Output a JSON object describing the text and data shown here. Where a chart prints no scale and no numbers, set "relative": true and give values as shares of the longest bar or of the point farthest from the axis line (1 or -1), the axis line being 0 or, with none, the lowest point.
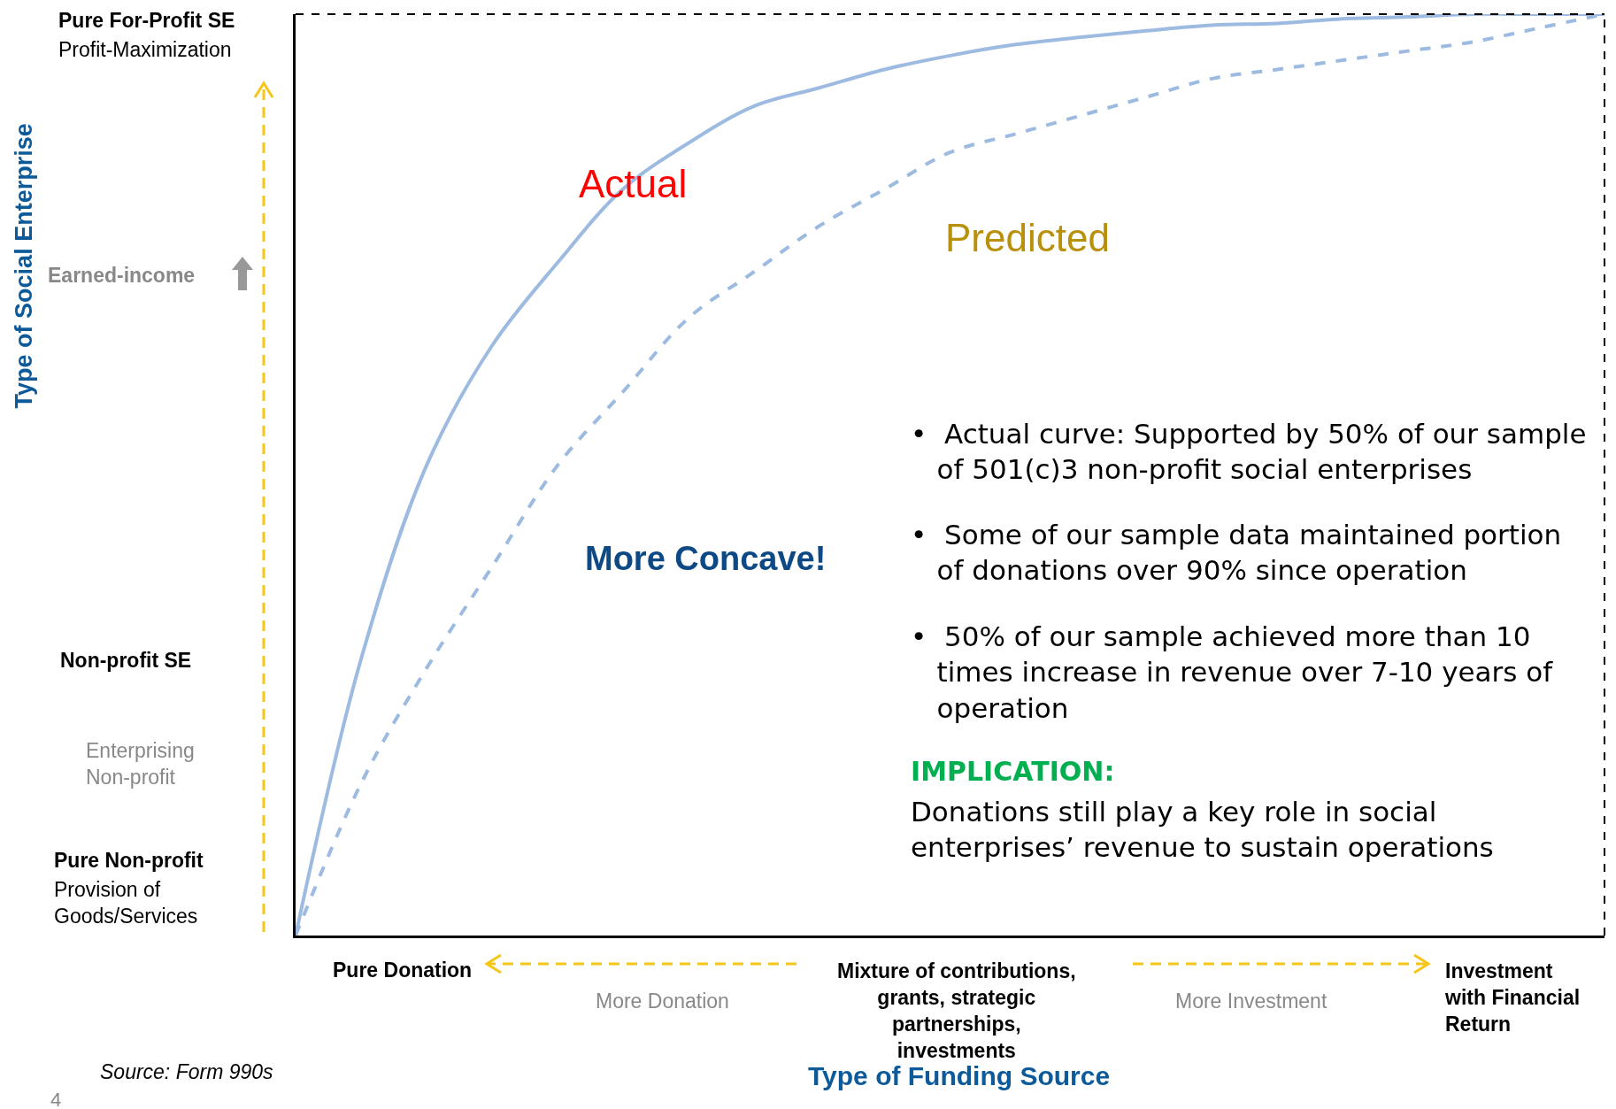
{
  "chart_data": {
    "type": "line",
    "relative": true,
    "xlabel": "Type of Funding Source",
    "categories": [
      null,
      null,
      null,
      null,
      null,
      null,
      null,
      null,
      null,
      null,
      null,
      null,
      null,
      null,
      null,
      null,
      null,
      null,
      null,
      null,
      null
    ],
    "series": [
      {
        "name": "Actual",
        "color": "#9dbbe0",
        "line_style": "solid",
        "values": [
          0,
          0.3,
          0.51,
          0.64,
          0.73,
          0.81,
          0.86,
          0.9,
          0.92,
          0.94,
          0.955,
          0.967,
          0.975,
          0.982,
          0.988,
          0.99,
          0.995,
          0.997,
          1,
          1,
          1
        ]
      },
      {
        "name": "Predicted",
        "color": "#9dbbe0",
        "line_style": "dashed",
        "values": [
          0,
          0.165,
          0.29,
          0.4,
          0.51,
          0.59,
          0.67,
          0.72,
          0.77,
          0.81,
          0.85,
          0.87,
          0.89,
          0.91,
          0.93,
          0.94,
          0.95,
          0.96,
          0.97,
          0.985,
          1
        ]
      }
    ],
    "marker": "none",
    "legend": false,
    "annotations": [
      "Pure For-Profit SE",
      "Profit-Maximization",
      "Earned-income",
      "Non-profit SE",
      "Enterprising\nNon-profit",
      "Pure Non-profit",
      "Provision of\nGoods/Services",
      "Pure Donation",
      "More Donation",
      "Mixture of contributions,\ngrants, strategic\npartnerships,\ninvestments",
      "More Investment",
      "Investment\nwith Financial\nReturn",
      "More Concave!",
      "•  Actual curve: Supported by 50% of our sample\n   of 501(c)3 non-profit social enterprises",
      "•  Some of our sample data maintained portion\n   of donations over 90% since operation",
      "•  50% of our sample achieved more than 10\n   times increase in revenue over 7-10 years of\n   operation",
      "IMPLICATION:",
      "Donations still play a key role in social\nenterprises’ revenue to sustain operations",
      "Source: Form 990s",
      "4",
      "Type of Social Enterprise"
    ]
  }
}
